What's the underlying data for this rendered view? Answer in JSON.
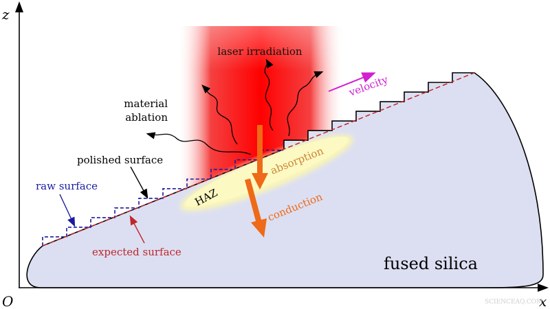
{
  "axes": {
    "origin": "O",
    "x": "x",
    "z": "z"
  },
  "labels": {
    "laser": "laser irradiation",
    "ablation_1": "material",
    "ablation_2": "ablation",
    "velocity": "velocity",
    "polished": "polished surface",
    "raw": "raw surface",
    "expected": "expected surface",
    "haz": "HAZ",
    "absorption": "absorption",
    "conduction": "conduction",
    "material": "fused silica"
  },
  "watermark": "SCIENCEAQ.COM",
  "colors": {
    "laser": "#ff0000",
    "silica": "#dcdff2",
    "haz": "#fbf6b4",
    "raw_surface": "#1a1aa0",
    "expected_surface": "#c0262c",
    "velocity": "#d020d0",
    "heat_arrow": "#ee6a18",
    "absorption_text": "#c9863a"
  }
}
